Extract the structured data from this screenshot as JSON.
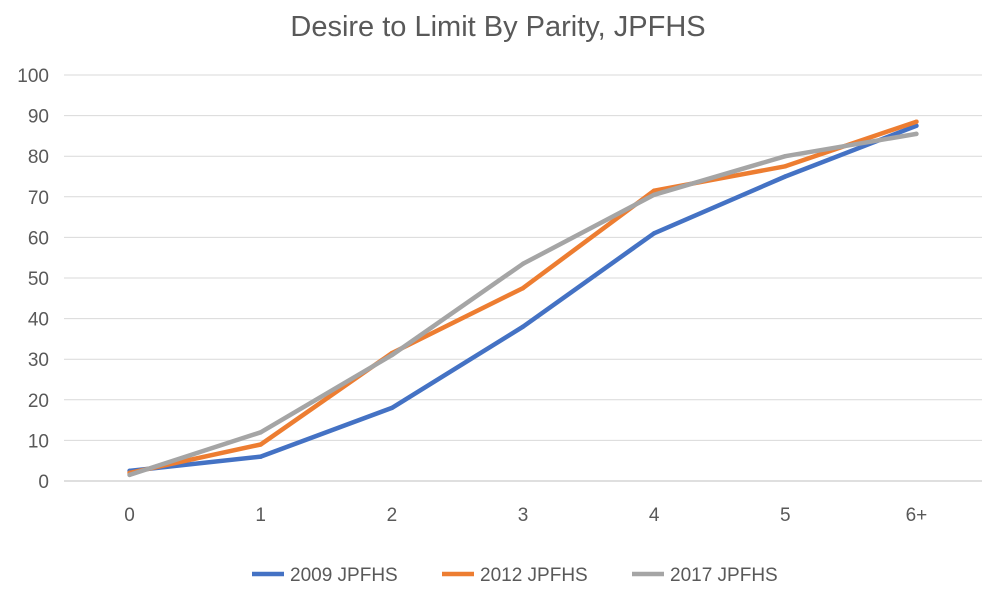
{
  "chart_data": {
    "type": "line",
    "title": "Desire to Limit By Parity, JPFHS",
    "xlabel": "",
    "ylabel": "",
    "categories": [
      "0",
      "1",
      "2",
      "3",
      "4",
      "5",
      "6+"
    ],
    "ylim": [
      0,
      100
    ],
    "yticks": [
      "0",
      "10",
      "20",
      "30",
      "40",
      "50",
      "60",
      "70",
      "80",
      "90",
      "100"
    ],
    "grid": true,
    "legend_position": "bottom",
    "series": [
      {
        "name": "2009 JPFHS",
        "color": "#4472c4",
        "values": [
          2.5,
          6,
          18,
          38,
          61,
          75,
          87.5
        ]
      },
      {
        "name": "2012 JPFHS",
        "color": "#ed7d31",
        "values": [
          2,
          9,
          31.5,
          47.5,
          71.5,
          77.5,
          88.5
        ]
      },
      {
        "name": "2017 JPFHS",
        "color": "#a5a5a5",
        "values": [
          1.5,
          12,
          31,
          53.5,
          70.5,
          80,
          85.5
        ]
      }
    ]
  }
}
